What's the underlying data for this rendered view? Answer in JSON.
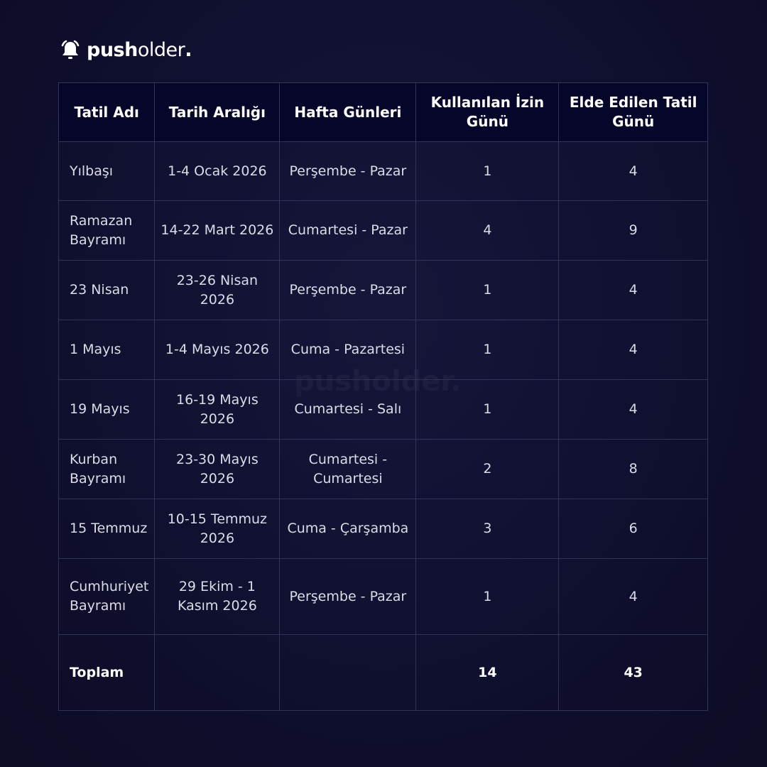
{
  "brand": {
    "bold": "push",
    "light": "older",
    "dot": "."
  },
  "watermark": "pusholder.",
  "headers": [
    "Tatil Adı",
    "Tarih Aralığı",
    "Hafta Günleri",
    "Kullanılan İzin Günü",
    "Elde Edilen Tatil Günü"
  ],
  "rows": [
    [
      "Yılbaşı",
      "1-4 Ocak 2026",
      "Perşembe - Pazar",
      "1",
      "4"
    ],
    [
      "Ramazan Bayramı",
      "14-22 Mart 2026",
      "Cumartesi - Pazar",
      "4",
      "9"
    ],
    [
      "23 Nisan",
      "23-26 Nisan 2026",
      "Perşembe - Pazar",
      "1",
      "4"
    ],
    [
      "1 Mayıs",
      "1-4 Mayıs 2026",
      "Cuma - Pazartesi",
      "1",
      "4"
    ],
    [
      "19 Mayıs",
      "16-19 Mayıs 2026",
      "Cumartesi - Salı",
      "1",
      "4"
    ],
    [
      "Kurban Bayramı",
      "23-30 Mayıs 2026",
      "Cumartesi - Cumartesi",
      "2",
      "8"
    ],
    [
      "15 Temmuz",
      "10-15 Temmuz 2026",
      "Cuma - Çarşamba",
      "3",
      "6"
    ],
    [
      "Cumhuriyet Bayramı",
      "29 Ekim - 1 Kasım 2026",
      "Perşembe - Pazar",
      "1",
      "4"
    ]
  ],
  "total": {
    "label": "Toplam",
    "used": "14",
    "gained": "43"
  }
}
